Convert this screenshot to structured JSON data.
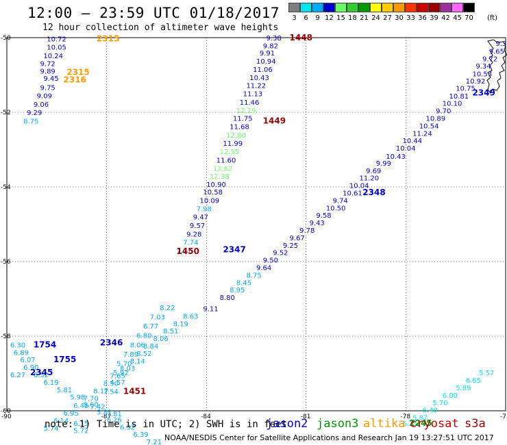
{
  "title": "12:00 – 23:59 UTC 01/18/2017",
  "subtitle": "12 hour collection of altimeter wave heights",
  "colorscale": {
    "labels": [
      "3",
      "6",
      "9",
      "12",
      "15",
      "18",
      "21",
      "24",
      "27",
      "30",
      "33",
      "36",
      "39",
      "42",
      "45",
      "70"
    ],
    "unit": "(ft)",
    "colors": [
      "#7f7f7f",
      "#00e5ee",
      "#00aaff",
      "#0000cc",
      "#66ff66",
      "#33cc33",
      "#009900",
      "#ffff00",
      "#ffcc00",
      "#ff9900",
      "#ff3300",
      "#cc0000",
      "#990000",
      "#993399",
      "#ff66ff",
      "#000000"
    ]
  },
  "axes": {
    "lon_ticks": [
      "-90",
      "-87",
      "-84",
      "-81",
      "-78",
      "-75"
    ],
    "lat_ticks": [
      "-50",
      "-52",
      "-54",
      "-56",
      "-58",
      "-60"
    ]
  },
  "note": "note: 1) Time is in UTC; 2) SWH is in feet",
  "legend": [
    {
      "label": "jason2",
      "color": "#0000cc"
    },
    {
      "label": "jason3",
      "color": "#009900"
    },
    {
      "label": "altika",
      "color": "#ff9900"
    },
    {
      "label": "cryosat",
      "color": "#cc0000"
    },
    {
      "label": "s3a",
      "color": "#990000"
    }
  ],
  "credit": "NOAA/NESDIS Center for Satellite Applications and Research    Jan 19 13:27:51 UTC 2017",
  "tracks": [
    {
      "id": "jason2-north",
      "color": "#0000cc",
      "points": [
        [
          "-88.8",
          "-50.10",
          "10.72"
        ],
        [
          "-88.8",
          "-50.32",
          "10.05"
        ],
        [
          "-88.9",
          "-50.55",
          "10.24"
        ],
        [
          "-89.0",
          "-50.76",
          "9.72"
        ],
        [
          "-89.0",
          "-50.96",
          "9.89"
        ],
        [
          "-88.9",
          "-51.16",
          "9.45"
        ],
        [
          "-89.0",
          "-51.40",
          "9.75"
        ],
        [
          "-89.1",
          "-51.62",
          "9.09"
        ],
        [
          "-89.2",
          "-51.85",
          "9.06"
        ],
        [
          "-89.4",
          "-52.07",
          "9.29"
        ]
      ]
    },
    {
      "id": "jason2-north-tail",
      "color": "#00aaff",
      "points": [
        [
          "-89.5",
          "-52.30",
          "8.75"
        ]
      ]
    },
    {
      "id": "cryosat-north",
      "color": "#0000cc",
      "points": [
        [
          "-82.2",
          "-50.07",
          "9.38"
        ],
        [
          "-82.3",
          "-50.28",
          "9.82"
        ],
        [
          "-82.4",
          "-50.48",
          "9.91"
        ],
        [
          "-82.5",
          "-50.70",
          "10.94"
        ],
        [
          "-82.6",
          "-50.92",
          "11.06"
        ],
        [
          "-82.7",
          "-51.14",
          "10.43"
        ],
        [
          "-82.8",
          "-51.35",
          "11.22"
        ],
        [
          "-82.9",
          "-51.57",
          "11.13"
        ],
        [
          "-83.0",
          "-51.80",
          "11.46"
        ]
      ]
    },
    {
      "id": "cryosat-mid",
      "color": "#66ff66",
      "points": [
        [
          "-83.1",
          "-52.02",
          "12.19"
        ]
      ]
    },
    {
      "id": "cryosat-mid2",
      "color": "#0000cc",
      "points": [
        [
          "-83.2",
          "-52.23",
          "11.75"
        ],
        [
          "-83.3",
          "-52.45",
          "11.68"
        ]
      ]
    },
    {
      "id": "cryosat-mid3",
      "color": "#66ff66",
      "points": [
        [
          "-83.4",
          "-52.68",
          "12.80"
        ]
      ]
    },
    {
      "id": "cryosat-mid4",
      "color": "#0000cc",
      "points": [
        [
          "-83.5",
          "-52.90",
          "11.99"
        ]
      ]
    },
    {
      "id": "cryosat-mid5",
      "color": "#66ff66",
      "points": [
        [
          "-83.6",
          "-53.12",
          "12.55"
        ]
      ]
    },
    {
      "id": "cryosat-mid6",
      "color": "#0000cc",
      "points": [
        [
          "-83.7",
          "-53.35",
          "11.60"
        ]
      ]
    },
    {
      "id": "cryosat-mid7",
      "color": "#66ff66",
      "points": [
        [
          "-83.8",
          "-53.57",
          "12.62"
        ],
        [
          "-83.9",
          "-53.78",
          "12.38"
        ]
      ]
    },
    {
      "id": "cryosat-south",
      "color": "#0000cc",
      "points": [
        [
          "-84.0",
          "-54.00",
          "10.90"
        ],
        [
          "-84.1",
          "-54.20",
          "10.58"
        ],
        [
          "-84.2",
          "-54.43",
          "10.09"
        ]
      ]
    },
    {
      "id": "cryosat-south2",
      "color": "#00aaff",
      "points": [
        [
          "-84.3",
          "-54.65",
          "7.98"
        ]
      ]
    },
    {
      "id": "cryosat-south3",
      "color": "#0000cc",
      "points": [
        [
          "-84.4",
          "-54.87",
          "9.47"
        ],
        [
          "-84.5",
          "-55.10",
          "9.57"
        ],
        [
          "-84.6",
          "-55.33",
          "9.28"
        ]
      ]
    },
    {
      "id": "cryosat-south4",
      "color": "#00aaff",
      "points": [
        [
          "-84.7",
          "-55.55",
          "7.74"
        ],
        [
          "-84.9",
          "-55.78",
          "7.21"
        ]
      ]
    },
    {
      "id": "jason2-diag",
      "color": "#0000cc",
      "points": [
        [
          "-75.3",
          "-50.22",
          "9.31"
        ],
        [
          "-75.5",
          "-50.43",
          "9.65"
        ],
        [
          "-75.7",
          "-50.63",
          "9.72"
        ],
        [
          "-75.9",
          "-50.83",
          "9.34"
        ],
        [
          "-76.0",
          "-51.04",
          "10.53"
        ],
        [
          "-76.2",
          "-51.23",
          "10.92"
        ],
        [
          "-76.5",
          "-51.42",
          "10.75"
        ],
        [
          "-76.7",
          "-51.63",
          "10.81"
        ],
        [
          "-76.9",
          "-51.83",
          "10.10"
        ],
        [
          "-77.1",
          "-52.03",
          "9.70"
        ],
        [
          "-77.4",
          "-52.23",
          "10.89"
        ],
        [
          "-77.6",
          "-52.43",
          "10.54"
        ],
        [
          "-77.8",
          "-52.63",
          "11.24"
        ],
        [
          "-78.1",
          "-52.83",
          "10.44"
        ],
        [
          "-78.3",
          "-53.03",
          "10.04"
        ],
        [
          "-78.6",
          "-53.25",
          "10.43"
        ],
        [
          "-78.9",
          "-53.43",
          "9.99"
        ],
        [
          "-79.2",
          "-53.63",
          "9.69"
        ],
        [
          "-79.4",
          "-53.83",
          "11.20"
        ],
        [
          "-79.7",
          "-54.03",
          "10.04"
        ],
        [
          "-79.9",
          "-54.23",
          "10.61"
        ],
        [
          "-80.2",
          "-54.43",
          "9.74"
        ],
        [
          "-80.4",
          "-54.63",
          "10.50"
        ],
        [
          "-80.7",
          "-54.83",
          "9.58"
        ],
        [
          "-80.9",
          "-55.03",
          "9.43"
        ],
        [
          "-81.2",
          "-55.23",
          "9.78"
        ],
        [
          "-81.5",
          "-55.43",
          "9.67"
        ],
        [
          "-81.7",
          "-55.63",
          "9.25"
        ],
        [
          "-82.0",
          "-55.83",
          "9.52"
        ],
        [
          "-82.3",
          "-56.03",
          "9.50"
        ],
        [
          "-82.5",
          "-56.23",
          "9.64"
        ]
      ]
    },
    {
      "id": "jason2-diag-light",
      "color": "#00aaff",
      "points": [
        [
          "-82.8",
          "-56.43",
          "8.75"
        ],
        [
          "-83.1",
          "-56.63",
          "8.45"
        ],
        [
          "-83.3",
          "-56.83",
          "8.95"
        ]
      ]
    },
    {
      "id": "jason2-diag2",
      "color": "#0000cc",
      "points": [
        [
          "-83.6",
          "-57.03",
          "8.80"
        ],
        [
          "-84.1",
          "-57.33",
          "9.11"
        ]
      ]
    },
    {
      "id": "jason2-diag3",
      "color": "#00aaff",
      "points": [
        [
          "-84.7",
          "-57.53",
          "8.63"
        ],
        [
          "-85.0",
          "-57.73",
          "8.19"
        ],
        [
          "-85.3",
          "-57.93",
          "8.51"
        ],
        [
          "-85.6",
          "-58.13",
          "8.06"
        ],
        [
          "-85.9",
          "-58.33",
          "8.84"
        ],
        [
          "-86.1",
          "-58.53",
          "8.52"
        ],
        [
          "-86.3",
          "-58.73",
          "8.14"
        ],
        [
          "-86.6",
          "-58.93",
          "8.03"
        ],
        [
          "-86.9",
          "-59.13",
          "7.65"
        ],
        [
          "-87.1",
          "-59.33",
          "8.50"
        ],
        [
          "-87.4",
          "-59.53",
          "8.17"
        ],
        [
          "-87.7",
          "-59.73",
          "7.70"
        ],
        [
          "-88.0",
          "-59.93",
          "6.40"
        ],
        [
          "-88.3",
          "-60.13",
          "6.95"
        ],
        [
          "-88.6",
          "-60.33",
          "6.14"
        ],
        [
          "-88.9",
          "-60.53",
          "5.74"
        ]
      ]
    },
    {
      "id": "jason3-track",
      "color": "#00aaff",
      "points": [
        [
          "-85.4",
          "-57.30",
          "8.22"
        ],
        [
          "-85.7",
          "-57.55",
          "7.03"
        ],
        [
          "-85.9",
          "-57.80",
          "6.77"
        ],
        [
          "-86.1",
          "-58.05",
          "6.80"
        ],
        [
          "-86.3",
          "-58.30",
          "8.06"
        ],
        [
          "-86.5",
          "-58.55",
          "7.89"
        ],
        [
          "-86.7",
          "-58.80",
          "5.70"
        ],
        [
          "-86.8",
          "-59.05",
          "5.92"
        ],
        [
          "-86.9",
          "-59.30",
          "4.57"
        ],
        [
          "-87.1",
          "-59.55",
          "7.54"
        ]
      ]
    },
    {
      "id": "jason2-sw",
      "color": "#00aaff",
      "points": [
        [
          "-89.9",
          "-58.30",
          "6.30"
        ],
        [
          "-89.8",
          "-58.50",
          "6.89"
        ],
        [
          "-89.6",
          "-58.70",
          "6.07"
        ],
        [
          "-89.5",
          "-58.90",
          "6.90"
        ],
        [
          "-89.2",
          "-59.10",
          "6.52"
        ],
        [
          "-88.9",
          "-59.30",
          "6.19"
        ],
        [
          "-88.5",
          "-59.50",
          "5.81"
        ],
        [
          "-88.1",
          "-59.70",
          "5.98"
        ],
        [
          "-87.7",
          "-59.90",
          "5.60"
        ],
        [
          "-87.3",
          "-60.10",
          "5.81"
        ],
        [
          "-87.0",
          "-60.30",
          "6.26"
        ],
        [
          "-86.6",
          "-60.50",
          "6.32"
        ],
        [
          "-86.2",
          "-60.70",
          "6.39"
        ],
        [
          "-85.8",
          "-60.90",
          "7.21"
        ]
      ]
    },
    {
      "id": "jason2-sw2",
      "color": "#00aaff",
      "points": [
        [
          "-89.9",
          "-59.10",
          "6.27"
        ],
        [
          "-87.5",
          "-59.95",
          "7.42"
        ],
        [
          "-87.0",
          "-60.15",
          "7.81"
        ],
        [
          "-88.0",
          "-60.40",
          "6.15"
        ],
        [
          "-88.0",
          "-60.60",
          "5.72"
        ]
      ]
    },
    {
      "id": "jason2-se",
      "color": "#00e5ee",
      "points": [
        [
          "-78.1",
          "-60.40",
          "5.75"
        ],
        [
          "-77.8",
          "-60.25",
          "5.87"
        ],
        [
          "-77.5",
          "-60.05",
          "6.40"
        ],
        [
          "-77.2",
          "-59.85",
          "5.70"
        ],
        [
          "-76.9",
          "-59.65",
          "6.00"
        ],
        [
          "-76.5",
          "-59.45",
          "5.89"
        ],
        [
          "-76.2",
          "-59.25",
          "6.65"
        ],
        [
          "-75.8",
          "-59.05",
          "5.57"
        ]
      ]
    }
  ],
  "time_labels": [
    {
      "text": "2315",
      "lon": "-87.3",
      "lat": "-50.10",
      "color": "#ff9900"
    },
    {
      "text": "2315",
      "lon": "-88.2",
      "lat": "-51.00",
      "color": "#ff9900"
    },
    {
      "text": "2316",
      "lon": "-88.3",
      "lat": "-51.20",
      "color": "#ff9900"
    },
    {
      "text": "1448",
      "lon": "-81.5",
      "lat": "-50.07",
      "color": "#990000"
    },
    {
      "text": "1449",
      "lon": "-82.3",
      "lat": "-52.30",
      "color": "#990000"
    },
    {
      "text": "1450",
      "lon": "-84.9",
      "lat": "-55.80",
      "color": "#990000"
    },
    {
      "text": "1451",
      "lon": "-86.5",
      "lat": "-59.55",
      "color": "#990000"
    },
    {
      "text": "2349",
      "lon": "-76.0",
      "lat": "-51.55",
      "color": "#0000cc"
    },
    {
      "text": "2348",
      "lon": "-79.3",
      "lat": "-54.22",
      "color": "#0000cc"
    },
    {
      "text": "2347",
      "lon": "-83.5",
      "lat": "-55.75",
      "color": "#0000cc"
    },
    {
      "text": "2346",
      "lon": "-87.2",
      "lat": "-58.25",
      "color": "#0000cc"
    },
    {
      "text": "1754",
      "lon": "-89.2",
      "lat": "-58.30",
      "color": "#0000cc"
    },
    {
      "text": "1755",
      "lon": "-88.6",
      "lat": "-58.70",
      "color": "#0000cc"
    },
    {
      "text": "2345",
      "lon": "-89.3",
      "lat": "-59.05",
      "color": "#0000cc"
    },
    {
      "text": "2245",
      "lon": "-77.9",
      "lat": "-60.40",
      "color": "#009900"
    }
  ]
}
